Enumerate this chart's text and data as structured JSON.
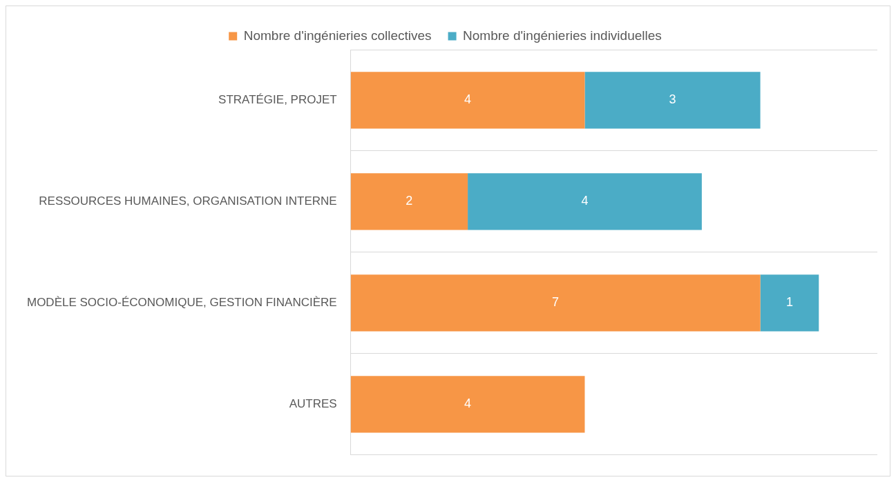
{
  "chart_data": {
    "type": "bar",
    "orientation": "horizontal",
    "stacked": true,
    "categories": [
      "STRATÉGIE, PROJET",
      "RESSOURCES HUMAINES, ORGANISATION INTERNE",
      "MODÈLE SOCIO-ÉCONOMIQUE, GESTION FINANCIÈRE",
      "AUTRES"
    ],
    "series": [
      {
        "name": "Nombre d'ingénieries collectives",
        "color": "#f79646",
        "values": [
          4,
          2,
          7,
          4
        ]
      },
      {
        "name": "Nombre d'ingénieries individuelles",
        "color": "#4bacc6",
        "values": [
          3,
          4,
          1,
          null
        ]
      }
    ],
    "data_labels": true,
    "grid": "y",
    "legend": "top"
  }
}
